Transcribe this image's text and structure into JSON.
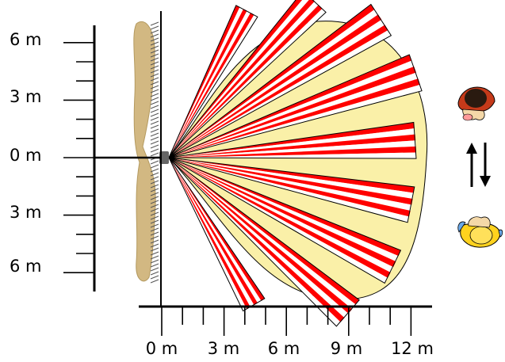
{
  "y_axis": {
    "tick_labels": [
      "6 m",
      "3 m",
      "0 m",
      "3 m",
      "6 m"
    ],
    "tick_values_m": [
      6,
      3,
      0,
      -3,
      -6
    ]
  },
  "x_axis": {
    "tick_labels": [
      "0 m",
      "3 m",
      "6 m",
      "9 m",
      "12 m"
    ],
    "tick_values_m": [
      0,
      3,
      6,
      9,
      12
    ]
  },
  "detection_zone": {
    "beam_count": 9,
    "beam_colors": [
      "#ff0000",
      "#ffffff"
    ],
    "zone_fill": "#faf0a8",
    "wall_fill": "#d2b882"
  },
  "icons": [
    "person-top-view-icon",
    "up-down-arrows-icon",
    "person-top-view-icon"
  ]
}
